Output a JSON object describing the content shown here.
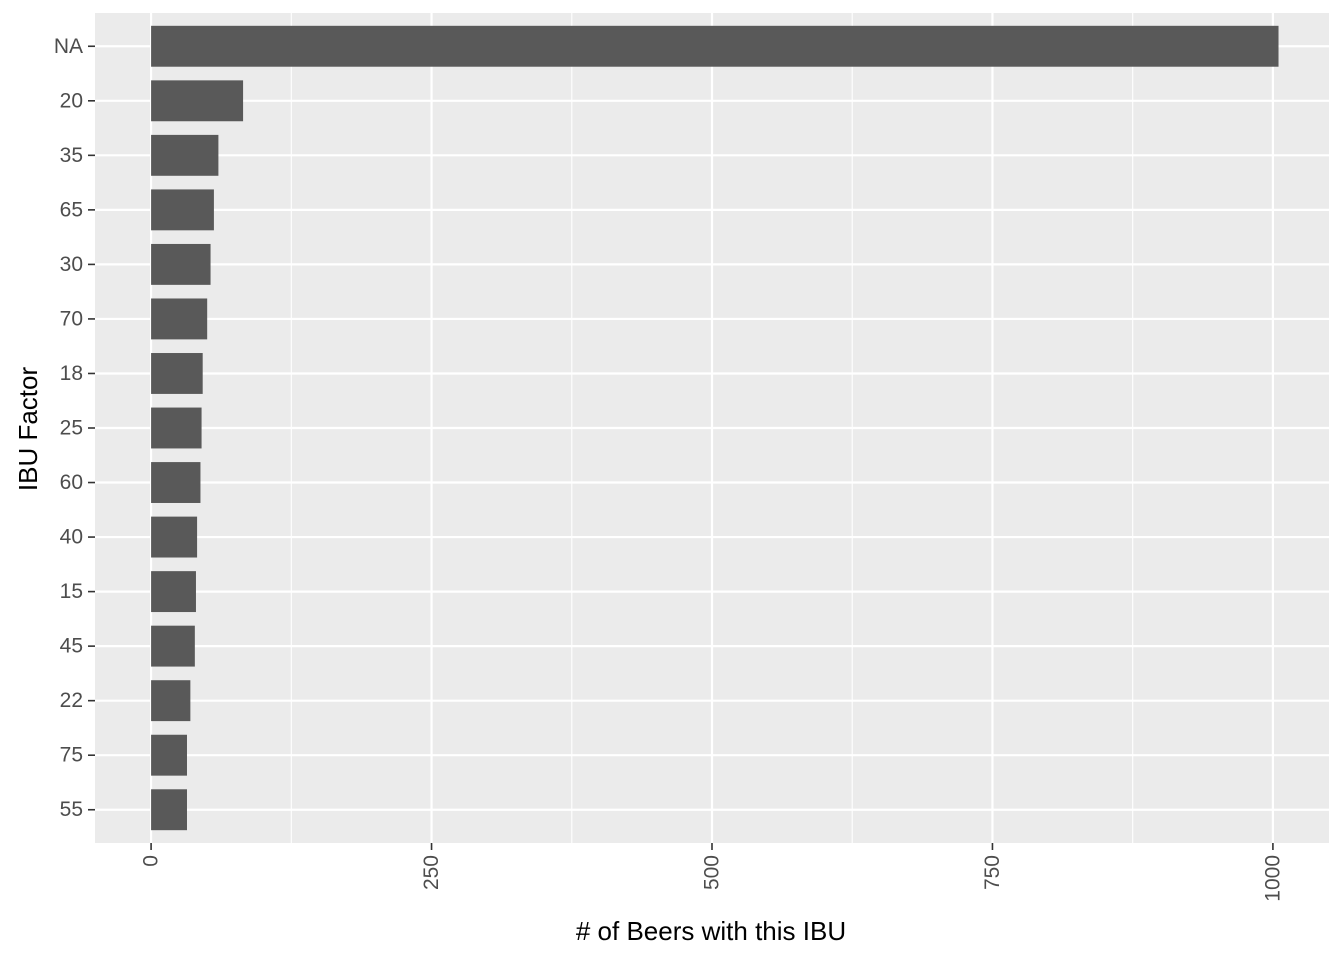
{
  "chart_data": {
    "type": "bar",
    "orientation": "horizontal",
    "title": "",
    "xlabel": "# of Beers with this IBU",
    "ylabel": "IBU Factor",
    "categories": [
      "NA",
      "20",
      "35",
      "65",
      "30",
      "70",
      "18",
      "25",
      "60",
      "40",
      "15",
      "45",
      "22",
      "75",
      "55"
    ],
    "values": [
      1005,
      82,
      60,
      56,
      53,
      50,
      46,
      45,
      44,
      41,
      40,
      39,
      35,
      32,
      32
    ],
    "xlim": [
      -50,
      1050
    ],
    "x_ticks": [
      0,
      250,
      500,
      750,
      1000
    ],
    "x_tick_labels": [
      "0",
      "250",
      "500",
      "750",
      "1000"
    ],
    "x_minor_ticks": [
      125,
      375,
      625,
      875
    ],
    "grid": true,
    "legend": "none",
    "colors": {
      "bar": "#595959",
      "panel_background": "#ebebeb",
      "grid": "#ffffff",
      "tick_mark": "#333333"
    }
  }
}
